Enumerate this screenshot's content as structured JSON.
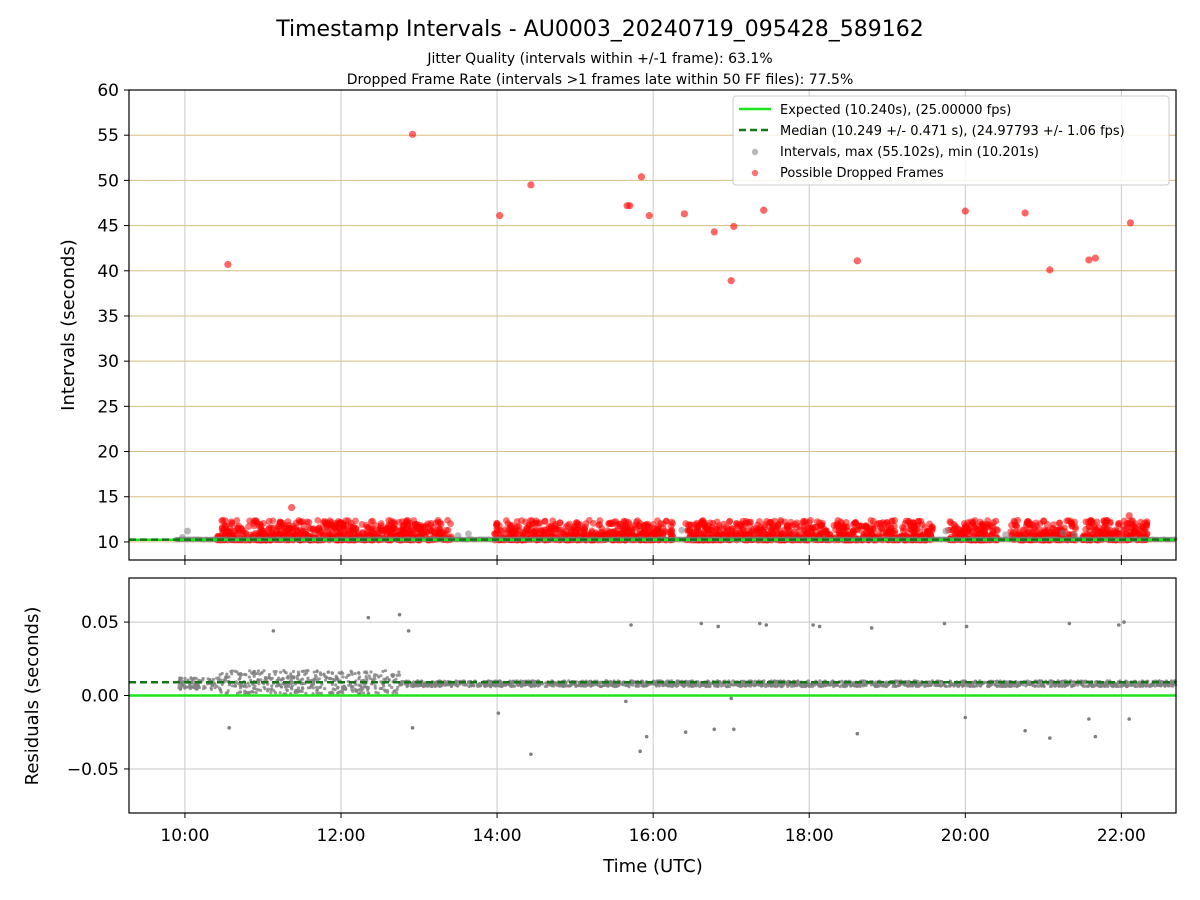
{
  "title": "Timestamp Intervals - AU0003_20240719_095428_589162",
  "subtitle_1": "Jitter Quality (intervals within +/-1 frame): 63.1%",
  "subtitle_2": "Dropped Frame Rate (intervals >1 frames late within 50 FF files): 77.5%",
  "colors": {
    "expected": "#1ee61e",
    "median": "#167516",
    "intervals": "#7f7f7f",
    "dropped": "#ff0000",
    "hgrid_top": "#d8be7e",
    "grid": "#c8c8c8"
  },
  "chart_data": [
    {
      "type": "scatter",
      "ylabel": "Intervals (seconds)",
      "xlim": [
        "09:17",
        "22:42"
      ],
      "ylim": [
        8,
        60
      ],
      "yticks": [
        "10",
        "15",
        "20",
        "25",
        "30",
        "35",
        "40",
        "45",
        "50",
        "55",
        "60"
      ],
      "xticks": [
        "10:00",
        "12:00",
        "14:00",
        "16:00",
        "18:00",
        "20:00",
        "22:00"
      ],
      "grid": true,
      "legend_position": "top-right",
      "lines": {
        "expected": {
          "name": "Expected (10.240s), (25.00000 fps)",
          "value": 10.24
        },
        "median": {
          "name": "Median (10.249 +/- 0.471 s), (24.97793 +/- 1.06 fps)",
          "value": 10.249
        }
      },
      "series": [
        {
          "name": "Intervals, max (55.102s), min (10.201s)",
          "max": 55.102,
          "min": 10.201
        },
        {
          "name": "Possible Dropped Frames",
          "points": [
            [
              "10:33",
              40.7
            ],
            [
              "12:55",
              55.1
            ],
            [
              "14:02",
              46.1
            ],
            [
              "14:26",
              49.5
            ],
            [
              "15:40",
              47.2
            ],
            [
              "15:42",
              47.2
            ],
            [
              "15:51",
              50.4
            ],
            [
              "15:57",
              46.1
            ],
            [
              "16:24",
              46.3
            ],
            [
              "16:47",
              44.3
            ],
            [
              "17:00",
              38.9
            ],
            [
              "17:02",
              44.9
            ],
            [
              "17:25",
              46.7
            ],
            [
              "18:37",
              41.1
            ],
            [
              "20:00",
              46.6
            ],
            [
              "20:46",
              46.4
            ],
            [
              "21:05",
              40.1
            ],
            [
              "21:35",
              41.2
            ],
            [
              "21:40",
              41.4
            ],
            [
              "22:07",
              45.3
            ],
            [
              "11:22",
              13.8
            ],
            [
              "22:06",
              12.9
            ]
          ],
          "dense_bands": [
            [
              "10:25",
              "11:20"
            ],
            [
              "11:20",
              "13:25"
            ],
            [
              "13:58",
              "16:15"
            ],
            [
              "16:25",
              "19:35"
            ],
            [
              "19:47",
              "20:25"
            ],
            [
              "20:35",
              "21:00"
            ],
            [
              "21:00",
              "21:25"
            ],
            [
              "21:30",
              "22:20"
            ]
          ]
        }
      ]
    },
    {
      "type": "scatter",
      "ylabel": "Residuals (seconds)",
      "xlabel": "Time (UTC)",
      "xlim": [
        "09:17",
        "22:42"
      ],
      "ylim": [
        -0.08,
        0.08
      ],
      "yticks": [
        "−0.05",
        "0.00",
        "0.05"
      ],
      "xticks": [
        "10:00",
        "12:00",
        "14:00",
        "16:00",
        "18:00",
        "20:00",
        "22:00"
      ],
      "grid": true,
      "lines": {
        "expected": 0.0,
        "median": 0.009
      },
      "outliers": [
        [
          "10:34",
          -0.022
        ],
        [
          "11:08",
          0.044
        ],
        [
          "12:21",
          0.053
        ],
        [
          "12:45",
          0.055
        ],
        [
          "12:52",
          0.044
        ],
        [
          "12:55",
          -0.022
        ],
        [
          "14:01",
          -0.012
        ],
        [
          "14:26",
          -0.04
        ],
        [
          "15:39",
          -0.004
        ],
        [
          "15:43",
          0.048
        ],
        [
          "15:50",
          -0.038
        ],
        [
          "15:55",
          -0.028
        ],
        [
          "16:25",
          -0.025
        ],
        [
          "16:37",
          0.049
        ],
        [
          "16:47",
          -0.023
        ],
        [
          "16:50",
          0.047
        ],
        [
          "17:00",
          -0.002
        ],
        [
          "17:02",
          -0.023
        ],
        [
          "17:22",
          0.049
        ],
        [
          "17:27",
          0.048
        ],
        [
          "18:03",
          0.048
        ],
        [
          "18:08",
          0.047
        ],
        [
          "18:37",
          -0.026
        ],
        [
          "18:48",
          0.046
        ],
        [
          "19:44",
          0.049
        ],
        [
          "20:00",
          -0.015
        ],
        [
          "20:01",
          0.047
        ],
        [
          "20:46",
          -0.024
        ],
        [
          "21:05",
          -0.029
        ],
        [
          "21:20",
          0.049
        ],
        [
          "21:35",
          -0.016
        ],
        [
          "21:40",
          -0.028
        ],
        [
          "21:58",
          0.048
        ],
        [
          "22:02",
          0.05
        ],
        [
          "22:06",
          -0.016
        ]
      ],
      "dense_bands": [
        {
          "from": "09:55",
          "to": "10:25",
          "center": 0.008,
          "spread": 0.004
        },
        {
          "from": "10:25",
          "to": "12:45",
          "center": 0.009,
          "spread": 0.008
        },
        {
          "from": "12:45",
          "to": "22:42",
          "center": 0.008,
          "spread": 0.002
        }
      ]
    }
  ]
}
